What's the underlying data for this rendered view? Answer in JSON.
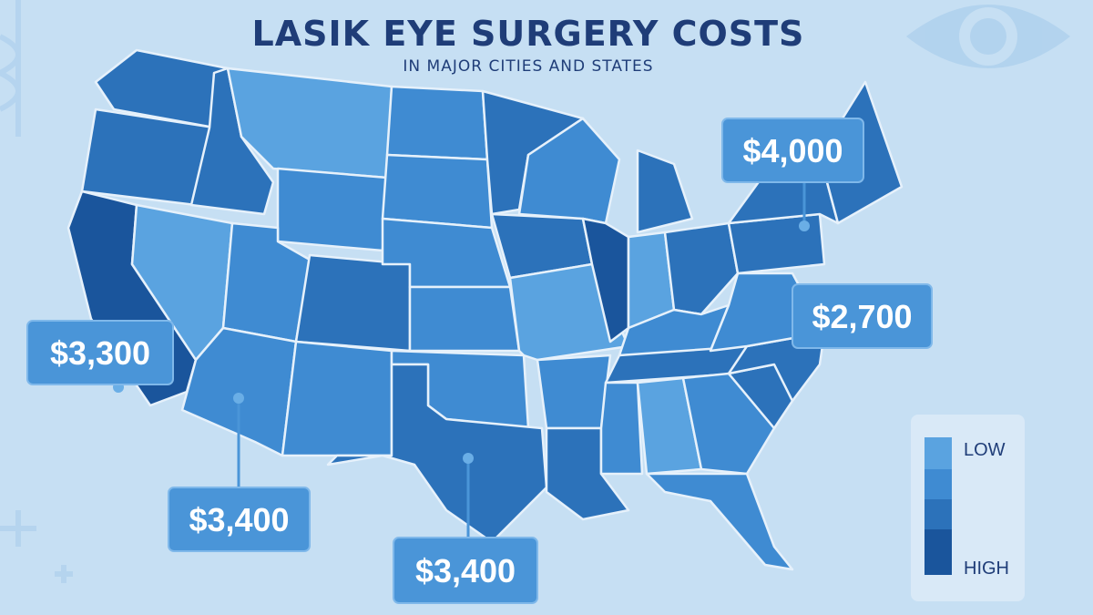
{
  "header": {
    "title": "LASIK EYE SURGERY COSTS",
    "subtitle": "IN MAJOR CITIES AND STATES"
  },
  "callouts": [
    {
      "label": "$4,000"
    },
    {
      "label": "$2,700"
    },
    {
      "label": "$3,300"
    },
    {
      "label": "$3,400"
    },
    {
      "label": "$3,400"
    }
  ],
  "legend": {
    "low": "LOW",
    "high": "HIGH"
  }
}
